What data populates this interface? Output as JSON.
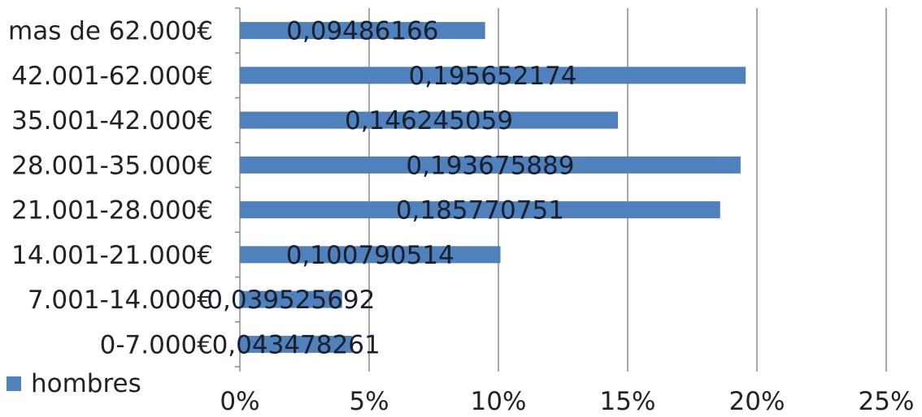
{
  "chart_data": {
    "type": "bar",
    "orientation": "horizontal",
    "categories": [
      "mas de 62.000€",
      "42.001-62.000€",
      "35.001-42.000€",
      "28.001-35.000€",
      "21.001-28.000€",
      "14.001-21.000€",
      "7.001-14.000€",
      "0-7.000€"
    ],
    "series": [
      {
        "name": "hombres",
        "values": [
          0.09486166,
          0.195652174,
          0.146245059,
          0.193675889,
          0.185770751,
          0.100790514,
          0.039525692,
          0.043478261
        ],
        "data_labels": [
          "0,09486166",
          "0,195652174",
          "0,146245059",
          "0,193675889",
          "0,185770751",
          "0,100790514",
          "0,039525692",
          "0,043478261"
        ],
        "color": "#4f81bd"
      }
    ],
    "xlim": [
      0,
      0.25
    ],
    "x_ticks": [
      0,
      0.05,
      0.1,
      0.15,
      0.2,
      0.25
    ],
    "x_tick_labels": [
      "0%",
      "5%",
      "10%",
      "15%",
      "20%",
      "25%"
    ],
    "grid": "vertical",
    "legend_position": "bottom-left",
    "title": "",
    "xlabel": "",
    "ylabel": ""
  },
  "legend": {
    "label": "hombres",
    "color": "#4f81bd"
  }
}
